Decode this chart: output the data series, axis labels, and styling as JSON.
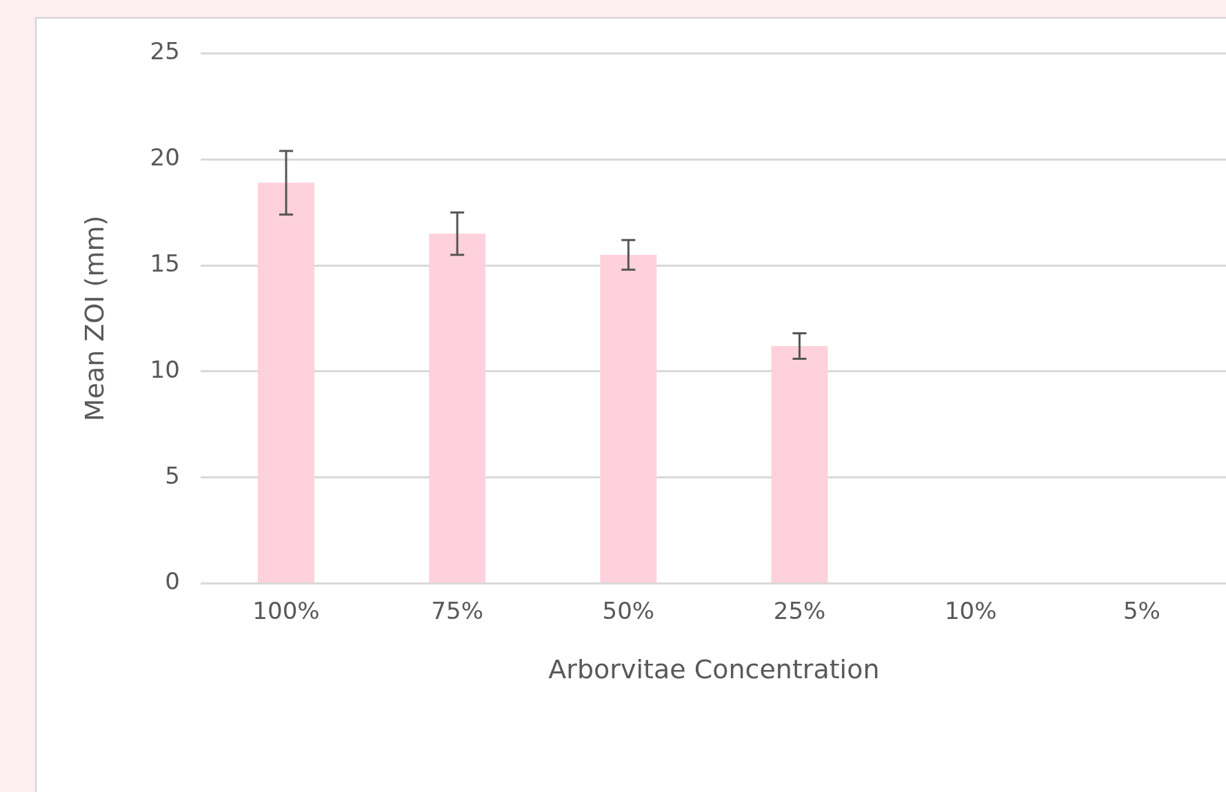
{
  "chart_data": {
    "type": "bar",
    "xlabel": "Arborvitae Concentration",
    "ylabel": "Mean ZOI (mm)",
    "categories": [
      "100%",
      "75%",
      "50%",
      "25%",
      "10%",
      "5%"
    ],
    "values": [
      18.9,
      16.5,
      15.5,
      11.2,
      0,
      0
    ],
    "errors": [
      1.5,
      1.0,
      0.7,
      0.6,
      null,
      null
    ],
    "color": "#ffd1dc",
    "ylim": [
      0,
      25
    ],
    "yticks": [
      0,
      5,
      10,
      15,
      20,
      25
    ],
    "grid": "y",
    "legend": false
  }
}
